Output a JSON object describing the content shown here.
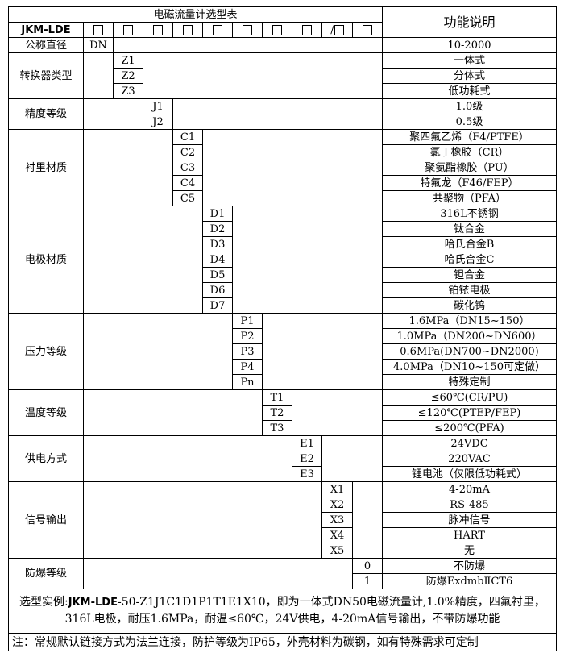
{
  "header": {
    "title": "电磁流量计选型表",
    "desc_header": "功能说明",
    "model": "JKM-LDE",
    "boxes": [
      "□",
      "□",
      "□",
      "□",
      "□",
      "□",
      "□",
      "□",
      "/□",
      "□"
    ]
  },
  "groups": [
    {
      "label": "公称直径",
      "col": 1,
      "rows": [
        {
          "code": "DN",
          "desc": "10-2000"
        }
      ]
    },
    {
      "label": "转换器类型",
      "col": 2,
      "rows": [
        {
          "code": "Z1",
          "desc": "一体式"
        },
        {
          "code": "Z2",
          "desc": "分体式"
        },
        {
          "code": "Z3",
          "desc": "低功耗式"
        }
      ]
    },
    {
      "label": "精度等级",
      "col": 3,
      "rows": [
        {
          "code": "J1",
          "desc": "1.0级"
        },
        {
          "code": "J2",
          "desc": "0.5级"
        }
      ]
    },
    {
      "label": "衬里材质",
      "col": 4,
      "rows": [
        {
          "code": "C1",
          "desc": "聚四氟乙烯（F4/PTFE）"
        },
        {
          "code": "C2",
          "desc": "氯丁橡胶（CR）"
        },
        {
          "code": "C3",
          "desc": "聚氨酯橡胶（PU）"
        },
        {
          "code": "C4",
          "desc": "特氟龙（F46/FEP）"
        },
        {
          "code": "C5",
          "desc": "共聚物（PFA）"
        }
      ]
    },
    {
      "label": "电极材质",
      "col": 5,
      "rows": [
        {
          "code": "D1",
          "desc": "316L不锈钢"
        },
        {
          "code": "D2",
          "desc": "钛合金"
        },
        {
          "code": "D3",
          "desc": "哈氏合金B"
        },
        {
          "code": "D4",
          "desc": "哈氏合金C"
        },
        {
          "code": "D5",
          "desc": "钽合金"
        },
        {
          "code": "D6",
          "desc": "铂铱电极"
        },
        {
          "code": "D7",
          "desc": "碳化钨"
        }
      ]
    },
    {
      "label": "压力等级",
      "col": 6,
      "rows": [
        {
          "code": "P1",
          "desc": "1.6MPa（DN15~150）"
        },
        {
          "code": "P2",
          "desc": "1.0MPa（DN200~DN600）"
        },
        {
          "code": "P3",
          "desc": "0.6MPa(DN700~DN2000)"
        },
        {
          "code": "P4",
          "desc": "4.0MPa（DN10~150可定做）"
        },
        {
          "code": "Pn",
          "desc": "特殊定制"
        }
      ]
    },
    {
      "label": "温度等级",
      "col": 7,
      "rows": [
        {
          "code": "T1",
          "desc": "≤60℃(CR/PU)"
        },
        {
          "code": "T2",
          "desc": "≤120℃(PTEP/FEP)"
        },
        {
          "code": "T3",
          "desc": "≤200℃(PFA)"
        }
      ]
    },
    {
      "label": "供电方式",
      "col": 8,
      "rows": [
        {
          "code": "E1",
          "desc": "24VDC"
        },
        {
          "code": "E2",
          "desc": "220VAC"
        },
        {
          "code": "E3",
          "desc": "锂电池（仅限低功耗式）"
        }
      ]
    },
    {
      "label": "信号输出",
      "col": 9,
      "rows": [
        {
          "code": "X1",
          "desc": "4-20mA"
        },
        {
          "code": "X2",
          "desc": "RS-485"
        },
        {
          "code": "X3",
          "desc": "脉冲信号"
        },
        {
          "code": "X4",
          "desc": "HART"
        },
        {
          "code": "X5",
          "desc": "无"
        }
      ]
    },
    {
      "label": "防爆等级",
      "col": 10,
      "rows": [
        {
          "code": "0",
          "desc": "不防爆"
        },
        {
          "code": "1",
          "desc": "防爆ExdmbⅡCT6"
        }
      ]
    }
  ],
  "footer": {
    "example_prefix": "选型实例:",
    "example_model": "JKM-LDE",
    "example_line1": "-50-Z1J1C1D1P1T1E1X10，即为一体式DN50电磁流量计,1.0%精度，四氟衬里，",
    "example_line2": "316L电极，耐压1.6MPa，耐温≤60℃，24V供电，4-20mA信号输出，不带防爆功能",
    "note": "注：常规默认链接方式为法兰连接，防护等级为IP65，外壳材料为碳钢，如有特殊需求可定制"
  }
}
